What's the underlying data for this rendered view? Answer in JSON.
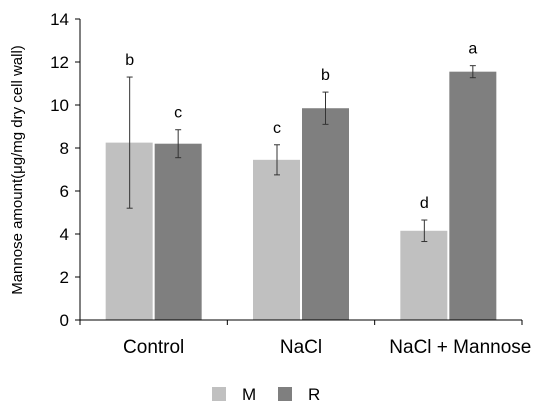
{
  "chart_data": {
    "type": "bar",
    "ylabel": "Mannose amount(μg/mg dry cell wall)",
    "ylim": [
      0,
      14
    ],
    "yticks": [
      0,
      2,
      4,
      6,
      8,
      10,
      12,
      14
    ],
    "grid": false,
    "legend_position": "bottom",
    "categories": [
      "Control",
      "NaCl",
      "NaCl + Mannose"
    ],
    "series": [
      {
        "name": "M",
        "color": "#c0c0c0",
        "values": [
          8.25,
          7.45,
          4.15
        ],
        "errors": [
          3.05,
          0.7,
          0.5
        ],
        "labels": [
          "b",
          "c",
          "d"
        ]
      },
      {
        "name": "R",
        "color": "#7f7f7f",
        "values": [
          8.2,
          9.85,
          11.55
        ],
        "errors": [
          0.65,
          0.75,
          0.28
        ],
        "labels": [
          "c",
          "b",
          "a"
        ]
      }
    ]
  }
}
